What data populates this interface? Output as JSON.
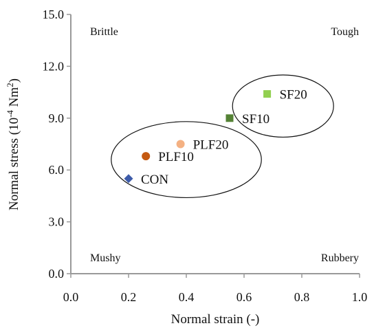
{
  "chart_data": {
    "type": "scatter",
    "xlabel": "Normal strain (-)",
    "ylabel": {
      "prefix": "Normal stress (10",
      "sup1": "-4",
      "mid": " Nm",
      "sup2": "2",
      "suffix": ")"
    },
    "xlim": [
      0.0,
      1.0
    ],
    "ylim": [
      0.0,
      15.0
    ],
    "x_ticks": [
      0.0,
      0.2,
      0.4,
      0.6,
      0.8,
      1.0
    ],
    "x_tick_labels": [
      "0.0",
      "0.2",
      "0.4",
      "0.6",
      "0.8",
      "1.0"
    ],
    "y_ticks": [
      0.0,
      3.0,
      6.0,
      9.0,
      12.0,
      15.0
    ],
    "y_tick_labels": [
      "0.0",
      "3.0",
      "6.0",
      "9.0",
      "12.0",
      "15.0"
    ],
    "grid": false,
    "quadrant_labels": {
      "top_left": "Brittle",
      "top_right": "Tough",
      "bottom_left": "Mushy",
      "bottom_right": "Rubbery"
    },
    "points": [
      {
        "label": "CON",
        "x": 0.2,
        "y": 5.5,
        "marker": "diamond",
        "color": "#3d5ba9"
      },
      {
        "label": "PLF10",
        "x": 0.26,
        "y": 6.8,
        "marker": "circle",
        "color": "#c55a11"
      },
      {
        "label": "PLF20",
        "x": 0.38,
        "y": 7.5,
        "marker": "circle",
        "color": "#f4b183"
      },
      {
        "label": "SF10",
        "x": 0.55,
        "y": 9.0,
        "marker": "square",
        "color": "#548235"
      },
      {
        "label": "SF20",
        "x": 0.68,
        "y": 10.4,
        "marker": "square",
        "color": "#92d050"
      }
    ],
    "groups": [
      {
        "members": [
          "CON",
          "PLF10",
          "PLF20"
        ],
        "center_x": 0.4,
        "center_y": 6.6,
        "radius_x": 0.26,
        "radius_y": 2.2
      },
      {
        "members": [
          "SF10",
          "SF20"
        ],
        "center_x": 0.735,
        "center_y": 9.7,
        "radius_x": 0.175,
        "radius_y": 1.8
      }
    ],
    "colors": {
      "axis": "#999999",
      "text": "#111111",
      "ellipse": "#111111"
    }
  }
}
